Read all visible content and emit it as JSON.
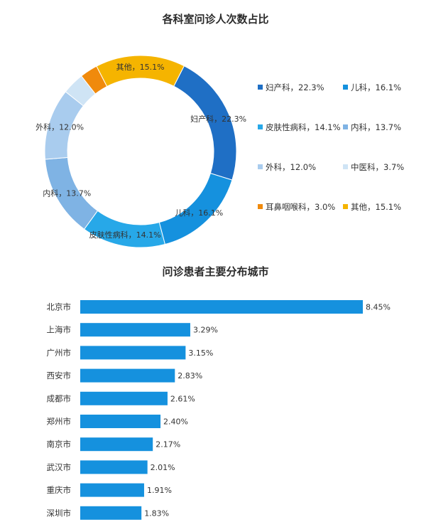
{
  "chart_data": [
    {
      "type": "pie",
      "title": "各科室问诊人次数占比",
      "categories": [
        "妇产科",
        "儿科",
        "皮肤性病科",
        "内科",
        "外科",
        "中医科",
        "耳鼻咽喉科",
        "其他"
      ],
      "values": [
        22.3,
        16.1,
        14.1,
        13.7,
        12.0,
        3.7,
        3.0,
        15.1
      ],
      "colors": [
        "#1f6fc5",
        "#1591de",
        "#27a8e8",
        "#7fb3e4",
        "#a9ccee",
        "#cfe4f5",
        "#f08a0c",
        "#f5b400"
      ],
      "slice_labels": [
        "妇产科，22.3%",
        "儿科，16.1%",
        "皮肤性病科，14.1%",
        "内科，13.7%",
        "外科，12.0%",
        "",
        "",
        "其他，15.1%"
      ],
      "legend": {
        "placement": "right",
        "items": [
          "妇产科，22.3%",
          "儿科，16.1%",
          "皮肤性病科，14.1%",
          "内科，13.7%",
          "外科，12.0%",
          "中医科，3.7%",
          "耳鼻咽喉科，3.0%",
          "其他，15.1%"
        ]
      }
    },
    {
      "type": "bar",
      "orientation": "horizontal",
      "title": "问诊患者主要分布城市",
      "categories": [
        "北京市",
        "上海市",
        "广州市",
        "西安市",
        "成都市",
        "郑州市",
        "南京市",
        "武汉市",
        "重庆市",
        "深圳市"
      ],
      "values": [
        8.45,
        3.29,
        3.15,
        2.83,
        2.61,
        2.4,
        2.17,
        2.01,
        1.91,
        1.83
      ],
      "value_labels": [
        "8.45%",
        "3.29%",
        "3.15%",
        "2.83%",
        "2.61%",
        "2.40%",
        "2.17%",
        "2.01%",
        "1.91%",
        "1.83%"
      ],
      "bar_color": "#1591de",
      "grid": false
    }
  ]
}
